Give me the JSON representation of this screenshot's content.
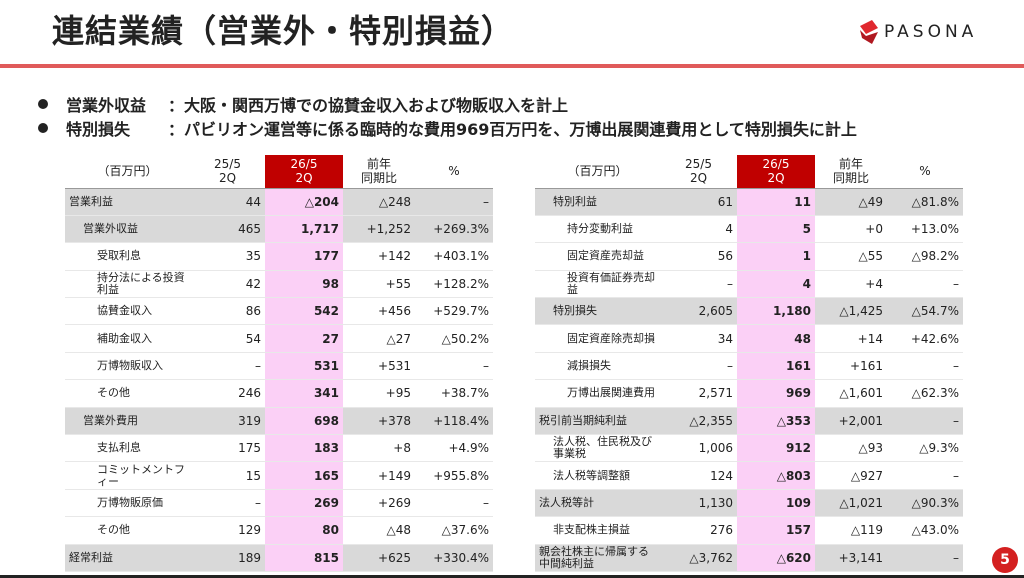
{
  "header": {
    "title": "連結業績（営業外・特別損益）",
    "logo": "PASONA"
  },
  "bullets": [
    {
      "label": "営業外収益",
      "text": "：大阪・関西万博での協賛金収入および物販収入を計上"
    },
    {
      "label": "特別損失",
      "text": "：パビリオン運営等に係る臨時的な費用969百万円を、万博出展関連費用として特別損失に計上"
    }
  ],
  "tables": [
    {
      "header": [
        "（百万円）",
        "25/5\n2Q",
        "26/5\n2Q",
        "前年\n同期比",
        "%"
      ],
      "rows": [
        [
          "営業利益",
          "44",
          "△204",
          "△248",
          "–"
        ],
        [
          "営業外収益",
          "465",
          "1,717",
          "+1,252",
          "+269.3%"
        ],
        [
          "受取利息",
          "35",
          "177",
          "+142",
          "+403.1%"
        ],
        [
          "持分法による投資利益",
          "42",
          "98",
          "+55",
          "+128.2%"
        ],
        [
          "協賛金収入",
          "86",
          "542",
          "+456",
          "+529.7%"
        ],
        [
          "補助金収入",
          "54",
          "27",
          "△27",
          "△50.2%"
        ],
        [
          "万博物販収入",
          "–",
          "531",
          "+531",
          "–"
        ],
        [
          "その他",
          "246",
          "341",
          "+95",
          "+38.7%"
        ],
        [
          "営業外費用",
          "319",
          "698",
          "+378",
          "+118.4%"
        ],
        [
          "支払利息",
          "175",
          "183",
          "+8",
          "+4.9%"
        ],
        [
          "コミットメントフィー",
          "15",
          "165",
          "+149",
          "+955.8%"
        ],
        [
          "万博物販原価",
          "–",
          "269",
          "+269",
          "–"
        ],
        [
          "その他",
          "129",
          "80",
          "△48",
          "△37.6%"
        ],
        [
          "経常利益",
          "189",
          "815",
          "+625",
          "+330.4%"
        ]
      ]
    },
    {
      "header": [
        "（百万円）",
        "25/5\n2Q",
        "26/5\n2Q",
        "前年\n同期比",
        "%"
      ],
      "rows": [
        [
          "特別利益",
          "61",
          "11",
          "△49",
          "△81.8%"
        ],
        [
          "持分変動利益",
          "4",
          "5",
          "+0",
          "+13.0%"
        ],
        [
          "固定資産売却益",
          "56",
          "1",
          "△55",
          "△98.2%"
        ],
        [
          "投資有価証券売却益",
          "–",
          "4",
          "+4",
          "–"
        ],
        [
          "特別損失",
          "2,605",
          "1,180",
          "△1,425",
          "△54.7%"
        ],
        [
          "固定資産除売却損",
          "34",
          "48",
          "+14",
          "+42.6%"
        ],
        [
          "減損損失",
          "–",
          "161",
          "+161",
          "–"
        ],
        [
          "万博出展関連費用",
          "2,571",
          "969",
          "△1,601",
          "△62.3%"
        ],
        [
          "税引前当期純利益",
          "△2,355",
          "△353",
          "+2,001",
          "–"
        ],
        [
          "法人税、住民税及び事業税",
          "1,006",
          "912",
          "△93",
          "△9.3%"
        ],
        [
          "法人税等調整額",
          "124",
          "△803",
          "△927",
          "–"
        ],
        [
          "法人税等計",
          "1,130",
          "109",
          "△1,021",
          "△90.3%"
        ],
        [
          "非支配株主損益",
          "276",
          "157",
          "△119",
          "△43.0%"
        ],
        [
          "親会社株主に帰属する中間純利益",
          "△3,762",
          "△620",
          "+3,141",
          "–"
        ]
      ]
    }
  ],
  "page_number": "5"
}
